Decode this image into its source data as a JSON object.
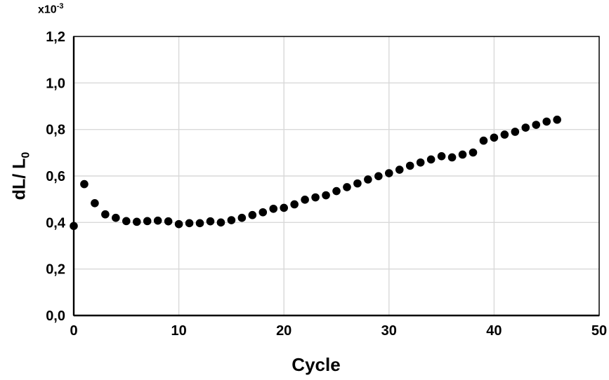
{
  "chart_data": {
    "type": "scatter",
    "title": "",
    "xlabel": "Cycle",
    "ylabel_main": "dL/ L",
    "ylabel_sub": "0",
    "multiplier_base": "x10",
    "multiplier_exp": "-3",
    "xlim": [
      0,
      50
    ],
    "ylim": [
      0,
      1.2
    ],
    "grid": true,
    "x_tick_labels": [
      "0",
      "10",
      "20",
      "30",
      "40",
      "50"
    ],
    "x_tick_values": [
      0,
      10,
      20,
      30,
      40,
      50
    ],
    "y_tick_labels": [
      "0,0",
      "0,2",
      "0,4",
      "0,6",
      "0,8",
      "1,0",
      "1,2"
    ],
    "y_tick_values": [
      0,
      0.2,
      0.4,
      0.6,
      0.8,
      1.0,
      1.2
    ],
    "marker_color": "#000000",
    "gridline_color": "#d9d9d9",
    "axis_color": "#000000",
    "x": [
      0,
      1,
      2,
      3,
      4,
      5,
      6,
      7,
      8,
      9,
      10,
      11,
      12,
      13,
      14,
      15,
      16,
      17,
      18,
      19,
      20,
      21,
      22,
      23,
      24,
      25,
      26,
      27,
      28,
      29,
      30,
      31,
      32,
      33,
      34,
      35,
      36,
      37,
      38,
      39,
      40,
      41,
      42,
      43,
      44,
      45,
      46
    ],
    "values": [
      0.385,
      0.565,
      0.483,
      0.435,
      0.42,
      0.406,
      0.403,
      0.406,
      0.408,
      0.405,
      0.393,
      0.397,
      0.397,
      0.405,
      0.4,
      0.41,
      0.42,
      0.432,
      0.444,
      0.459,
      0.463,
      0.478,
      0.498,
      0.508,
      0.517,
      0.535,
      0.552,
      0.568,
      0.585,
      0.599,
      0.612,
      0.627,
      0.644,
      0.658,
      0.671,
      0.685,
      0.68,
      0.692,
      0.701,
      0.752,
      0.765,
      0.778,
      0.79,
      0.808,
      0.82,
      0.834,
      0.842
    ]
  }
}
